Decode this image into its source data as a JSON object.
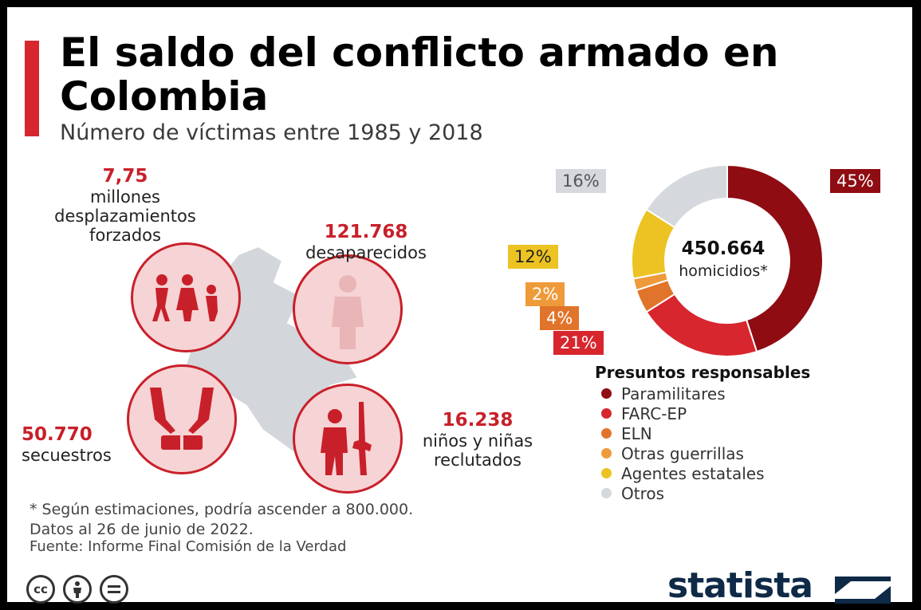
{
  "title": "El saldo del conflicto armado en Colombia",
  "subtitle": "Número de víctimas entre 1985 y 2018",
  "stats": {
    "desplazamientos": {
      "value": "7,75",
      "label": "millones desplazamientos forzados"
    },
    "desaparecidos": {
      "value": "121.768",
      "label": "desaparecidos"
    },
    "secuestros": {
      "value": "50.770",
      "label": "secuestros"
    },
    "ninos": {
      "value": "16.238",
      "label": "niños y niñas reclutados"
    }
  },
  "donut": {
    "center_value": "450.664",
    "center_label": "homicidios*"
  },
  "legend_title": "Presuntos responsables",
  "colors": {
    "accent": "#d7262e",
    "paramilitares": "#8e0c12",
    "farc": "#d7262e",
    "eln": "#e0742a",
    "otras_guerrillas": "#ef9a3a",
    "agentes_estatales": "#ecc322",
    "otros": "#d5d8dc"
  },
  "chart_data": {
    "type": "pie",
    "title": "",
    "series": [
      {
        "name": "Paramilitares",
        "value": 45,
        "label": "45%",
        "color": "#8e0c12"
      },
      {
        "name": "FARC-EP",
        "value": 21,
        "label": "21%",
        "color": "#d7262e"
      },
      {
        "name": "ELN",
        "value": 4,
        "label": "4%",
        "color": "#e0742a"
      },
      {
        "name": "Otras guerrillas",
        "value": 2,
        "label": "2%",
        "color": "#ef9a3a"
      },
      {
        "name": "Agentes estatales",
        "value": 12,
        "label": "12%",
        "color": "#ecc322"
      },
      {
        "name": "Otros",
        "value": 16,
        "label": "16%",
        "color": "#d5d8dc"
      }
    ]
  },
  "notes": {
    "line1": "* Según estimaciones, podría ascender a 800.000.",
    "line2": "Datos al 26 de junio de 2022.",
    "source": "Fuente: Informe Final Comisión de la Verdad"
  },
  "license_icons": [
    "cc-icon",
    "attribution-icon",
    "no-derivatives-icon"
  ],
  "brand": "statista"
}
